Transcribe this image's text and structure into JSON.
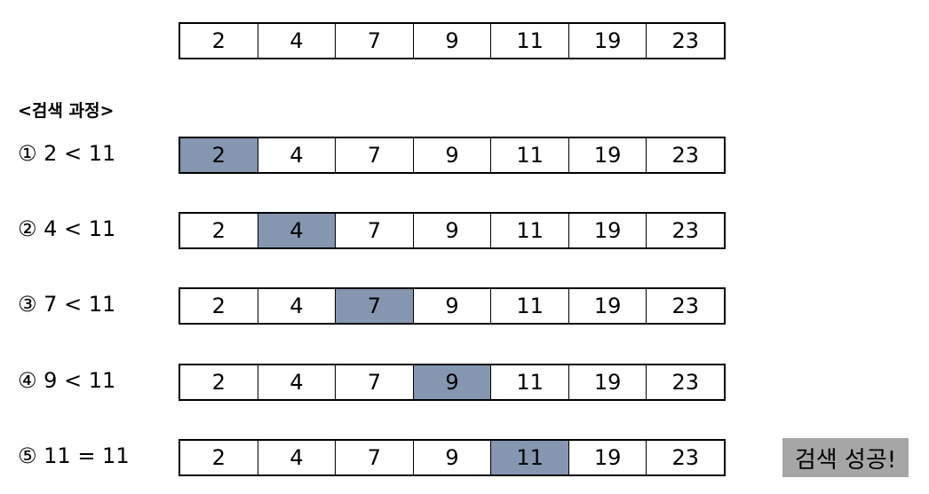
{
  "array": [
    "2",
    "4",
    "7",
    "9",
    "11",
    "19",
    "23"
  ],
  "section_title": "<검색 과정>",
  "steps": [
    {
      "label": "① 2 < 11",
      "highlight": 0
    },
    {
      "label": "② 4 < 11",
      "highlight": 1
    },
    {
      "label": "③ 7 < 11",
      "highlight": 2
    },
    {
      "label": "④ 9 < 11",
      "highlight": 3
    },
    {
      "label": "⑤ 11 = 11",
      "highlight": 4
    }
  ],
  "result": "검색 성공!",
  "colors": {
    "highlight": "#8496b0",
    "badge": "#a6a6a6"
  }
}
